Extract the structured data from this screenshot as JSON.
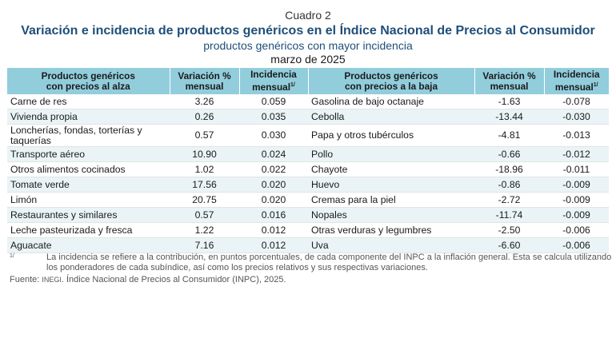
{
  "header": {
    "cuadro": "Cuadro 2",
    "title": "Variación e incidencia de productos genéricos en el Índice Nacional de Precios al Consumidor",
    "subtitle": "productos genéricos con mayor incidencia",
    "date": "marzo de 2025"
  },
  "columns": {
    "up_products_l1": "Productos genéricos",
    "up_products_l2": "con precios al alza",
    "variation_l1": "Variación %",
    "variation_l2": "mensual",
    "incidence_l1": "Incidencia",
    "incidence_l2": "mensual",
    "incidence_mark": "1/",
    "down_products_l1": "Productos genéricos",
    "down_products_l2": "con precios a la baja"
  },
  "rows": [
    {
      "up_name": "Carne de res",
      "up_var": "3.26",
      "up_inc": "0.059",
      "down_name": "Gasolina de bajo octanaje",
      "down_var": "-1.63",
      "down_inc": "-0.078"
    },
    {
      "up_name": "Vivienda propia",
      "up_var": "0.26",
      "up_inc": "0.035",
      "down_name": "Cebolla",
      "down_var": "-13.44",
      "down_inc": "-0.030"
    },
    {
      "up_name": "Loncherías, fondas, torterías y taquerías",
      "up_var": "0.57",
      "up_inc": "0.030",
      "down_name": "Papa y otros tubérculos",
      "down_var": "-4.81",
      "down_inc": "-0.013"
    },
    {
      "up_name": "Transporte aéreo",
      "up_var": "10.90",
      "up_inc": "0.024",
      "down_name": "Pollo",
      "down_var": "-0.66",
      "down_inc": "-0.012"
    },
    {
      "up_name": "Otros alimentos cocinados",
      "up_var": "1.02",
      "up_inc": "0.022",
      "down_name": "Chayote",
      "down_var": "-18.96",
      "down_inc": "-0.011"
    },
    {
      "up_name": "Tomate verde",
      "up_var": "17.56",
      "up_inc": "0.020",
      "down_name": "Huevo",
      "down_var": "-0.86",
      "down_inc": "-0.009"
    },
    {
      "up_name": "Limón",
      "up_var": "20.75",
      "up_inc": "0.020",
      "down_name": "Cremas para la piel",
      "down_var": "-2.72",
      "down_inc": "-0.009"
    },
    {
      "up_name": "Restaurantes y similares",
      "up_var": "0.57",
      "up_inc": "0.016",
      "down_name": "Nopales",
      "down_var": "-11.74",
      "down_inc": "-0.009"
    },
    {
      "up_name": "Leche pasteurizada y fresca",
      "up_var": "1.22",
      "up_inc": "0.012",
      "down_name": "Otras verduras y legumbres",
      "down_var": "-2.50",
      "down_inc": "-0.006"
    },
    {
      "up_name": "Aguacate",
      "up_var": "7.16",
      "up_inc": "0.012",
      "down_name": "Uva",
      "down_var": "-6.60",
      "down_inc": "-0.006"
    }
  ],
  "footnote": {
    "mark": "1/",
    "text": "La incidencia se refiere a la contribución, en puntos porcentuales, de cada componente del INPC a la inflación general. Esta se calcula utilizando los ponderadores de cada subíndice, así como los precios relativos y sus respectivas variaciones."
  },
  "source": {
    "label": "Fuente:",
    "org": "INEGI",
    "text": ". Índice Nacional de Precios al Consumidor (INPC), 2025."
  },
  "colors": {
    "header_bg": "#92cddc",
    "title": "#1f4e79",
    "stripe": "#eaf4f7"
  }
}
